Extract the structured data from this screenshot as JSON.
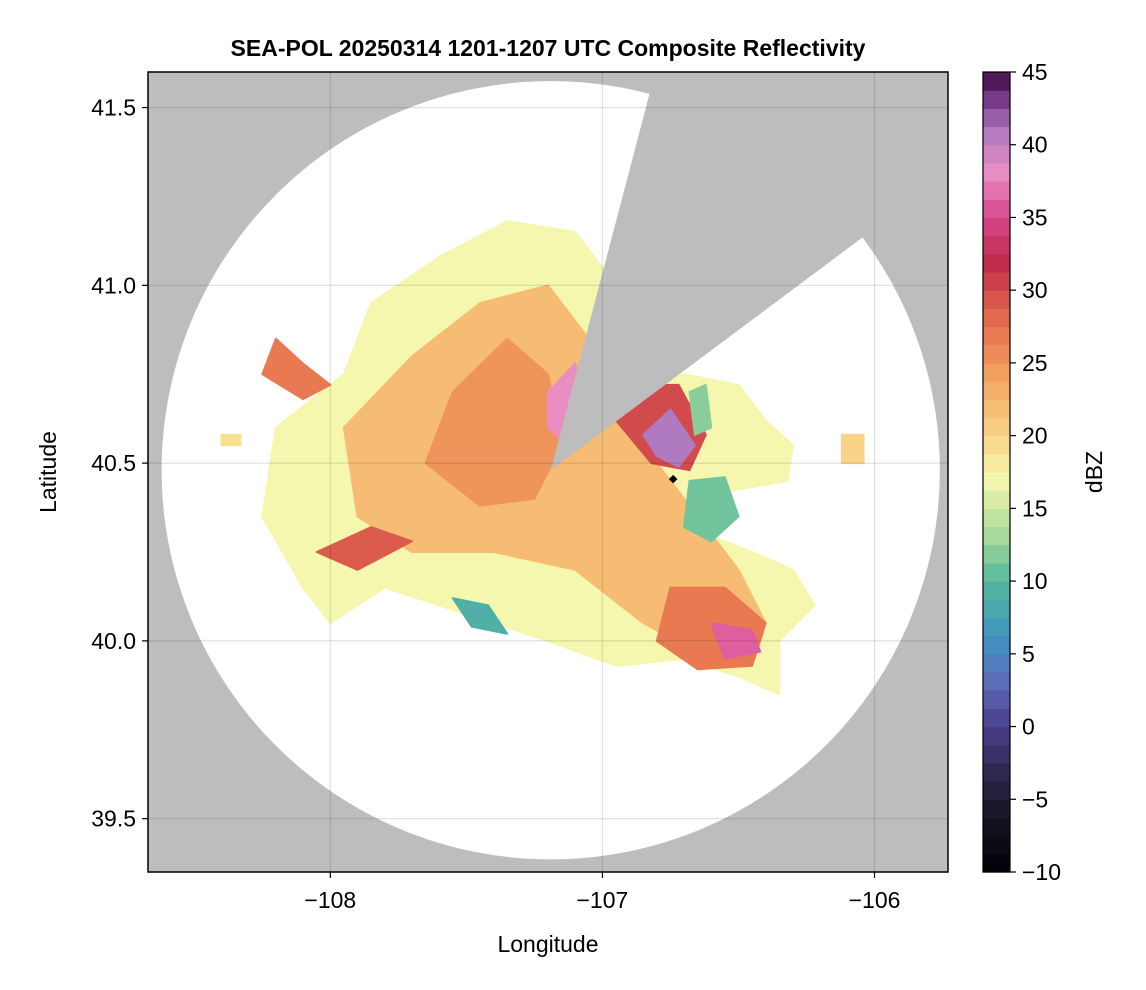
{
  "chart_data": {
    "type": "heatmap",
    "title": "SEA-POL 20250314 1201-1207 UTC Composite Reflectivity",
    "xlabel": "Longitude",
    "ylabel": "Latitude",
    "xlim": [
      -108.67,
      -105.73
    ],
    "ylim": [
      39.35,
      41.6
    ],
    "x_ticks": [
      -108,
      -107,
      -106
    ],
    "x_tick_labels": [
      "−108",
      "−107",
      "−106"
    ],
    "y_ticks": [
      39.5,
      40.0,
      40.5,
      41.0,
      41.5
    ],
    "y_tick_labels": [
      "39.5",
      "40.0",
      "40.5",
      "41.0",
      "41.5"
    ],
    "grid": true,
    "radar_site": [
      -107.19,
      40.48
    ],
    "radar_range_deg": 1.43,
    "blocked_sector_lon_lat": [
      [
        -106.83,
        41.53
      ],
      [
        -106.07,
        41.12
      ]
    ],
    "marker": [
      -106.74,
      40.455
    ],
    "colorbar": {
      "label": "dBZ",
      "min": -10,
      "max": 45,
      "step": 1.25,
      "ticks": [
        -10,
        -5,
        0,
        5,
        10,
        15,
        20,
        25,
        30,
        35,
        40,
        45
      ],
      "tick_labels": [
        "−10",
        "−5",
        "0",
        "5",
        "10",
        "15",
        "20",
        "25",
        "30",
        "35",
        "40",
        "45"
      ],
      "colormap_stops": [
        {
          "value": -10,
          "color": "#000004"
        },
        {
          "value": -5,
          "color": "#1f1a2e"
        },
        {
          "value": 0,
          "color": "#4a3e8c"
        },
        {
          "value": 3,
          "color": "#5e6bb8"
        },
        {
          "value": 6,
          "color": "#3f93c2"
        },
        {
          "value": 10,
          "color": "#56b89c"
        },
        {
          "value": 13,
          "color": "#a3d89a"
        },
        {
          "value": 17,
          "color": "#f4f7ad"
        },
        {
          "value": 20,
          "color": "#f9d488"
        },
        {
          "value": 24,
          "color": "#f3a360"
        },
        {
          "value": 28,
          "color": "#e46b4c"
        },
        {
          "value": 32,
          "color": "#c02a4c"
        },
        {
          "value": 35,
          "color": "#d8478d"
        },
        {
          "value": 38,
          "color": "#e88ec3"
        },
        {
          "value": 41,
          "color": "#b07ac0"
        },
        {
          "value": 43,
          "color": "#7a3d8c"
        },
        {
          "value": 45,
          "color": "#3d0a45"
        }
      ]
    },
    "echo_regions": [
      {
        "name": "main-echo",
        "dbz": 17,
        "polygon": [
          [
            -108.1,
            40.15
          ],
          [
            -108.25,
            40.35
          ],
          [
            -108.2,
            40.6
          ],
          [
            -107.95,
            40.75
          ],
          [
            -107.85,
            40.95
          ],
          [
            -107.6,
            41.08
          ],
          [
            -107.35,
            41.18
          ],
          [
            -107.1,
            41.15
          ],
          [
            -106.95,
            41.0
          ],
          [
            -106.9,
            40.85
          ],
          [
            -106.9,
            40.7
          ],
          [
            -106.7,
            40.75
          ],
          [
            -106.5,
            40.72
          ],
          [
            -106.4,
            40.62
          ],
          [
            -106.3,
            40.55
          ],
          [
            -106.32,
            40.45
          ],
          [
            -106.55,
            40.42
          ],
          [
            -106.62,
            40.3
          ],
          [
            -106.45,
            40.25
          ],
          [
            -106.3,
            40.2
          ],
          [
            -106.22,
            40.1
          ],
          [
            -106.35,
            40.0
          ],
          [
            -106.35,
            39.85
          ],
          [
            -106.5,
            39.9
          ],
          [
            -106.7,
            39.95
          ],
          [
            -106.95,
            39.93
          ],
          [
            -107.2,
            40.0
          ],
          [
            -107.4,
            40.05
          ],
          [
            -107.6,
            40.1
          ],
          [
            -107.8,
            40.15
          ],
          [
            -108.0,
            40.05
          ]
        ]
      },
      {
        "name": "broad-moderate-core",
        "dbz": 22,
        "polygon": [
          [
            -107.9,
            40.35
          ],
          [
            -107.95,
            40.6
          ],
          [
            -107.7,
            40.8
          ],
          [
            -107.45,
            40.95
          ],
          [
            -107.2,
            41.0
          ],
          [
            -107.05,
            40.85
          ],
          [
            -107.0,
            40.65
          ],
          [
            -106.85,
            40.55
          ],
          [
            -106.65,
            40.35
          ],
          [
            -106.5,
            40.2
          ],
          [
            -106.4,
            40.05
          ],
          [
            -106.6,
            39.95
          ],
          [
            -106.85,
            40.05
          ],
          [
            -107.1,
            40.2
          ],
          [
            -107.4,
            40.25
          ],
          [
            -107.7,
            40.25
          ]
        ]
      },
      {
        "name": "central-strong",
        "dbz": 25,
        "polygon": [
          [
            -107.65,
            40.5
          ],
          [
            -107.55,
            40.7
          ],
          [
            -107.35,
            40.85
          ],
          [
            -107.2,
            40.75
          ],
          [
            -107.15,
            40.55
          ],
          [
            -107.25,
            40.4
          ],
          [
            -107.45,
            40.38
          ]
        ]
      },
      {
        "name": "southeast-strong",
        "dbz": 27,
        "polygon": [
          [
            -106.75,
            40.15
          ],
          [
            -106.55,
            40.15
          ],
          [
            -106.4,
            40.05
          ],
          [
            -106.45,
            39.93
          ],
          [
            -106.65,
            39.92
          ],
          [
            -106.8,
            40.0
          ]
        ]
      },
      {
        "name": "southeast-core",
        "dbz": 36,
        "polygon": [
          [
            -106.6,
            40.05
          ],
          [
            -106.45,
            40.03
          ],
          [
            -106.42,
            39.97
          ],
          [
            -106.55,
            39.95
          ]
        ]
      },
      {
        "name": "northeast-strong",
        "dbz": 30,
        "polygon": [
          [
            -106.95,
            40.62
          ],
          [
            -106.85,
            40.72
          ],
          [
            -106.72,
            40.72
          ],
          [
            -106.62,
            40.58
          ],
          [
            -106.68,
            40.48
          ],
          [
            -106.82,
            40.5
          ]
        ]
      },
      {
        "name": "northeast-core",
        "dbz": 41,
        "polygon": [
          [
            -106.85,
            40.58
          ],
          [
            -106.75,
            40.65
          ],
          [
            -106.66,
            40.55
          ],
          [
            -106.72,
            40.49
          ],
          [
            -106.8,
            40.52
          ]
        ]
      },
      {
        "name": "central-north-core",
        "dbz": 38,
        "polygon": [
          [
            -107.2,
            40.7
          ],
          [
            -107.1,
            40.78
          ],
          [
            -107.05,
            40.65
          ],
          [
            -107.12,
            40.55
          ],
          [
            -107.2,
            40.6
          ]
        ]
      },
      {
        "name": "west-streak",
        "dbz": 29,
        "polygon": [
          [
            -108.05,
            40.25
          ],
          [
            -107.85,
            40.32
          ],
          [
            -107.7,
            40.28
          ],
          [
            -107.9,
            40.2
          ]
        ]
      },
      {
        "name": "northwest-band",
        "dbz": 27,
        "polygon": [
          [
            -108.2,
            40.85
          ],
          [
            -108.1,
            40.78
          ],
          [
            -108.0,
            40.72
          ],
          [
            -108.1,
            40.68
          ],
          [
            -108.25,
            40.75
          ]
        ]
      },
      {
        "name": "east-weak-area",
        "dbz": 11,
        "polygon": [
          [
            -106.68,
            40.45
          ],
          [
            -106.55,
            40.46
          ],
          [
            -106.5,
            40.35
          ],
          [
            -106.6,
            40.28
          ],
          [
            -106.7,
            40.32
          ]
        ]
      },
      {
        "name": "east-weak-strip",
        "dbz": 12,
        "polygon": [
          [
            -106.68,
            40.7
          ],
          [
            -106.62,
            40.72
          ],
          [
            -106.6,
            40.6
          ],
          [
            -106.66,
            40.58
          ]
        ]
      },
      {
        "name": "southwest-weak",
        "dbz": 9,
        "polygon": [
          [
            -107.55,
            40.12
          ],
          [
            -107.42,
            40.1
          ],
          [
            -107.35,
            40.02
          ],
          [
            -107.48,
            40.04
          ]
        ]
      },
      {
        "name": "far-west-blob",
        "dbz": 19,
        "polygon": [
          [
            -108.4,
            40.58
          ],
          [
            -108.33,
            40.58
          ],
          [
            -108.33,
            40.55
          ],
          [
            -108.4,
            40.55
          ]
        ]
      },
      {
        "name": "far-east-blob",
        "dbz": 20,
        "polygon": [
          [
            -106.12,
            40.58
          ],
          [
            -106.04,
            40.58
          ],
          [
            -106.04,
            40.5
          ],
          [
            -106.12,
            40.5
          ]
        ]
      }
    ]
  }
}
